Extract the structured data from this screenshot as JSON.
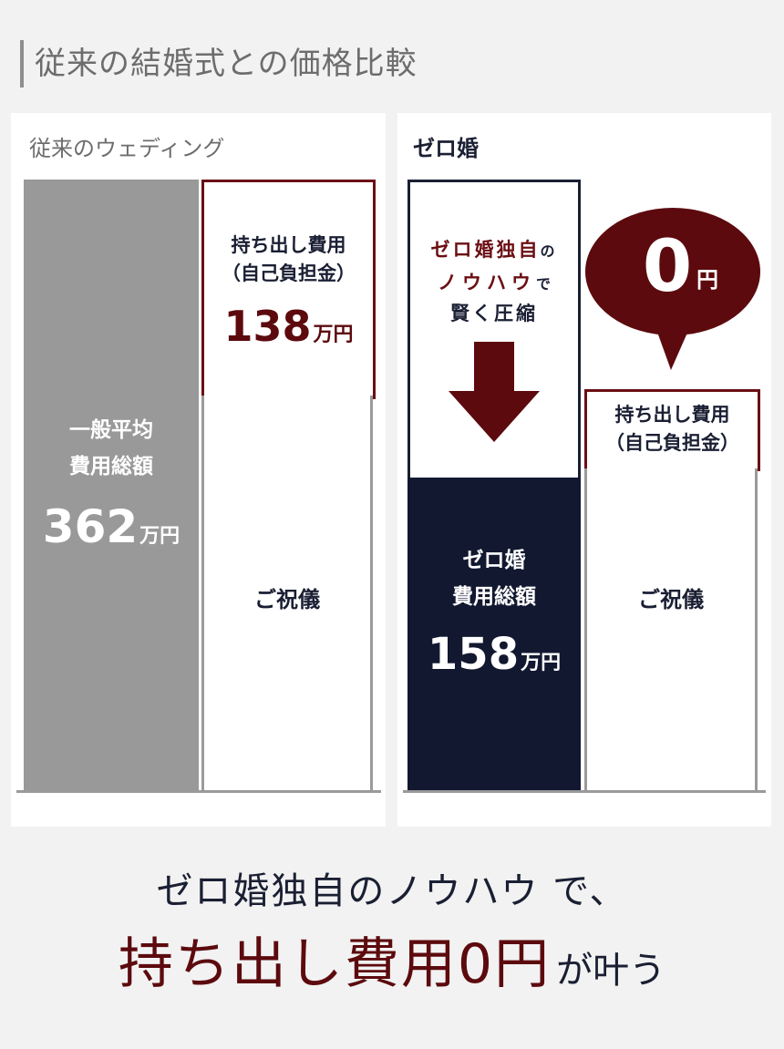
{
  "title": "従来の結婚式との価格比較",
  "left": {
    "label": "従来のウェディング",
    "total": {
      "line1": "一般平均",
      "line2": "費用総額",
      "value": "362",
      "unit": "万円"
    },
    "out_of_pocket": {
      "line1": "持ち出し費用",
      "line2": "（自己負担金）",
      "value": "138",
      "unit": "万円"
    },
    "gift": "ご祝儀"
  },
  "right": {
    "label": "ゼロ婚",
    "knowhow": {
      "line1_main": "ゼロ婚独自",
      "line1_suffix": "の",
      "line2_main": "ノウハウ",
      "line2_suffix": "で",
      "line3": "賢く圧縮"
    },
    "total": {
      "line1": "ゼロ婚",
      "line2": "費用総額",
      "value": "158",
      "unit": "万円"
    },
    "bubble": {
      "value": "0",
      "unit": "円"
    },
    "out_of_pocket": {
      "line1": "持ち出し費用",
      "line2": "（自己負担金）"
    },
    "gift": "ご祝儀"
  },
  "message": {
    "line1": "ゼロ婚独自のノウハウ で、",
    "line2_main": "持ち出し費用0円",
    "line2_suffix": "が叶う"
  },
  "colors": {
    "maroon": "#6b0f14",
    "navy": "#121830",
    "gray_bar": "#999999",
    "background": "#f2f2f2"
  }
}
